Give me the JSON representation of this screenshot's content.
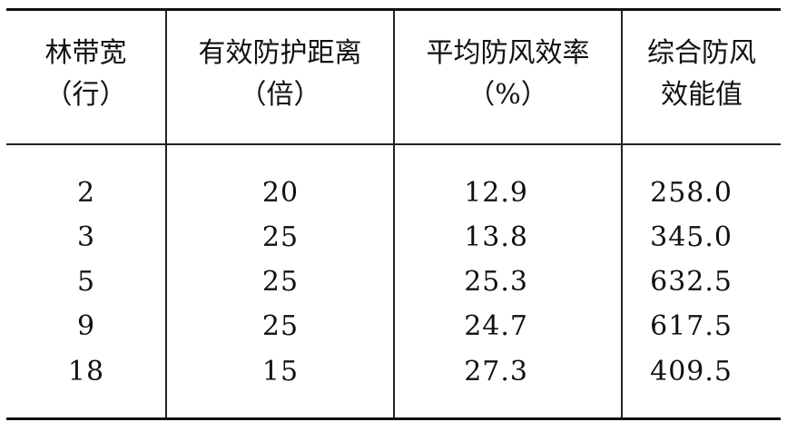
{
  "table": {
    "headers": [
      [
        "林带宽",
        "（行）"
      ],
      [
        "有效防护距离",
        "（倍）"
      ],
      [
        "平均防风效率",
        "（%）"
      ],
      [
        "综合防风",
        "效能值"
      ]
    ],
    "rows": [
      [
        "2",
        "20",
        "12.9",
        "258.0"
      ],
      [
        "3",
        "25",
        "13.8",
        "345.0"
      ],
      [
        "5",
        "25",
        "25.3",
        "632.5"
      ],
      [
        "9",
        "25",
        "24.7",
        "617.5"
      ],
      [
        "18",
        "15",
        "27.3",
        "409.5"
      ]
    ]
  }
}
